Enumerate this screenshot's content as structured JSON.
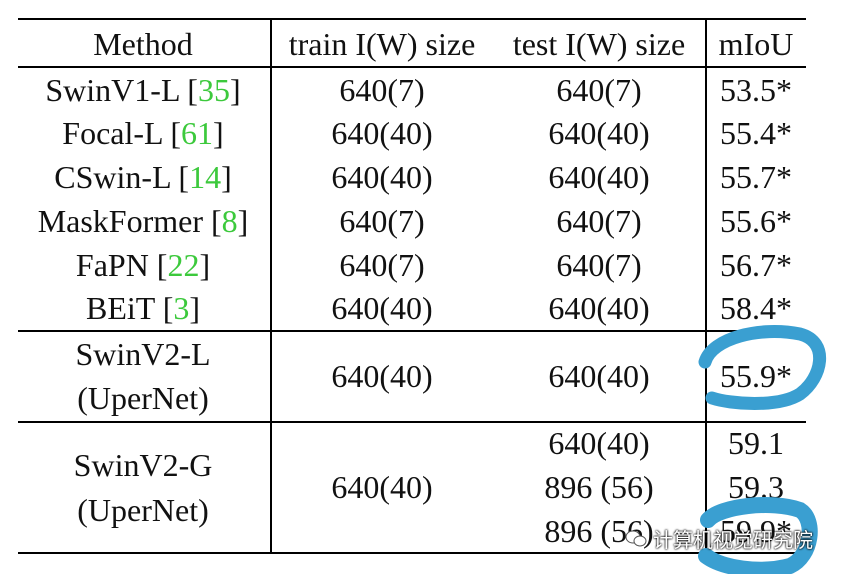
{
  "table": {
    "headers": [
      "Method",
      "train I(W) size",
      "test I(W) size",
      "mIoU"
    ],
    "rows": [
      {
        "method": "SwinV1-L",
        "ref": "35",
        "train": "640(7)",
        "test": "640(7)",
        "miou": "53.5*"
      },
      {
        "method": "Focal-L",
        "ref": "61",
        "train": "640(40)",
        "test": "640(40)",
        "miou": "55.4*"
      },
      {
        "method": "CSwin-L",
        "ref": "14",
        "train": "640(40)",
        "test": "640(40)",
        "miou": "55.7*"
      },
      {
        "method": "MaskFormer",
        "ref": "8",
        "train": "640(7)",
        "test": "640(7)",
        "miou": "55.6*"
      },
      {
        "method": "FaPN",
        "ref": "22",
        "train": "640(7)",
        "test": "640(7)",
        "miou": "56.7*"
      },
      {
        "method": "BEiT",
        "ref": "3",
        "train": "640(40)",
        "test": "640(40)",
        "miou": "58.4*"
      }
    ],
    "swinv2_l": {
      "method_line1": "SwinV2-L",
      "method_line2": "(UperNet)",
      "train": "640(40)",
      "test": "640(40)",
      "miou": "55.9*"
    },
    "swinv2_g": {
      "method_line1": "SwinV2-G",
      "method_line2": "(UperNet)",
      "train": "640(40)",
      "tests": [
        "640(40)",
        "896 (56)",
        "896 (56)"
      ],
      "mious": [
        "59.1",
        "59.3",
        "59.9*"
      ]
    }
  },
  "annotation_color": "#3a9fd1",
  "ref_color": "#3cc93c",
  "watermark": "计算机视觉研究院"
}
